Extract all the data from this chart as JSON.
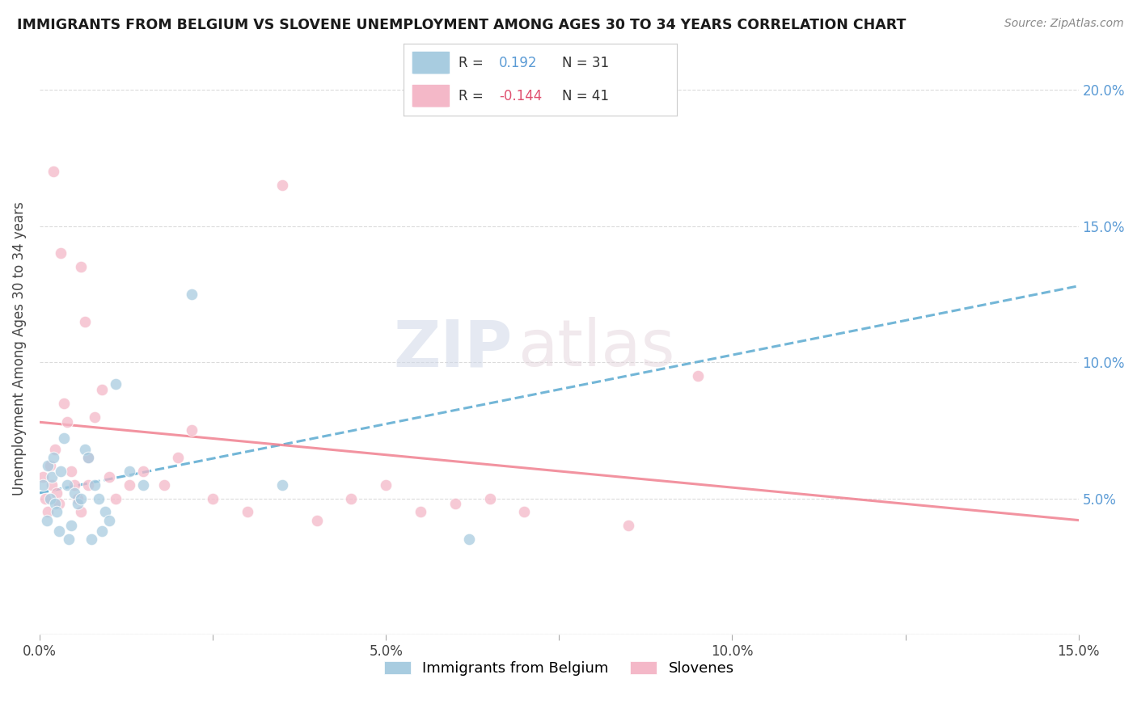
{
  "title": "IMMIGRANTS FROM BELGIUM VS SLOVENE UNEMPLOYMENT AMONG AGES 30 TO 34 YEARS CORRELATION CHART",
  "source": "Source: ZipAtlas.com",
  "ylabel": "Unemployment Among Ages 30 to 34 years",
  "xlim": [
    0.0,
    15.0
  ],
  "ylim": [
    0.0,
    21.0
  ],
  "yticks": [
    0.0,
    5.0,
    10.0,
    15.0,
    20.0
  ],
  "xticks": [
    0.0,
    2.5,
    5.0,
    7.5,
    10.0,
    12.5,
    15.0
  ],
  "xtick_labels": [
    "0.0%",
    "",
    "5.0%",
    "",
    "10.0%",
    "",
    "15.0%"
  ],
  "color_blue": "#a8cce0",
  "color_pink": "#f4b8c8",
  "color_blue_line": "#5aaad0",
  "color_pink_line": "#f08090",
  "watermark_zip": "ZIP",
  "watermark_atlas": "atlas",
  "blue_scatter_x": [
    0.05,
    0.1,
    0.12,
    0.15,
    0.18,
    0.2,
    0.22,
    0.25,
    0.28,
    0.3,
    0.35,
    0.4,
    0.42,
    0.45,
    0.5,
    0.55,
    0.6,
    0.65,
    0.7,
    0.75,
    0.8,
    0.85,
    0.9,
    0.95,
    1.0,
    1.1,
    1.3,
    1.5,
    2.2,
    3.5,
    6.2
  ],
  "blue_scatter_y": [
    5.5,
    4.2,
    6.2,
    5.0,
    5.8,
    6.5,
    4.8,
    4.5,
    3.8,
    6.0,
    7.2,
    5.5,
    3.5,
    4.0,
    5.2,
    4.8,
    5.0,
    6.8,
    6.5,
    3.5,
    5.5,
    5.0,
    3.8,
    4.5,
    4.2,
    9.2,
    6.0,
    5.5,
    12.5,
    5.5,
    3.5
  ],
  "pink_scatter_x": [
    0.05,
    0.08,
    0.12,
    0.15,
    0.18,
    0.22,
    0.25,
    0.28,
    0.35,
    0.4,
    0.45,
    0.5,
    0.55,
    0.6,
    0.65,
    0.7,
    0.8,
    0.9,
    1.0,
    1.1,
    1.3,
    1.5,
    1.8,
    2.0,
    2.5,
    3.0,
    3.5,
    4.0,
    4.5,
    5.0,
    5.5,
    6.0,
    6.5,
    7.0,
    8.5,
    9.5,
    0.2,
    0.3,
    0.6,
    0.7,
    2.2
  ],
  "pink_scatter_y": [
    5.8,
    5.0,
    4.5,
    6.2,
    5.5,
    6.8,
    5.2,
    4.8,
    8.5,
    7.8,
    6.0,
    5.5,
    5.0,
    4.5,
    11.5,
    6.5,
    8.0,
    9.0,
    5.8,
    5.0,
    5.5,
    6.0,
    5.5,
    6.5,
    5.0,
    4.5,
    16.5,
    4.2,
    5.0,
    5.5,
    4.5,
    4.8,
    5.0,
    4.5,
    4.0,
    9.5,
    17.0,
    14.0,
    13.5,
    5.5,
    7.5
  ],
  "blue_line_x0": 0.0,
  "blue_line_x1": 15.0,
  "blue_line_y0": 5.2,
  "blue_line_y1": 12.8,
  "pink_line_x0": 0.0,
  "pink_line_x1": 15.0,
  "pink_line_y0": 7.8,
  "pink_line_y1": 4.2
}
